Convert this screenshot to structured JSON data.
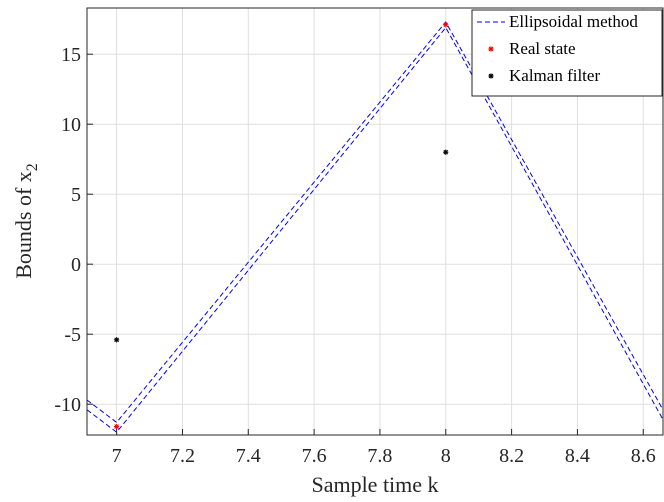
{
  "chart_data": {
    "type": "line",
    "xlabel": "Sample time k",
    "ylabel_main": "Bounds of x",
    "ylabel_sub": "2",
    "xlim": [
      6.91,
      8.66
    ],
    "ylim": [
      -12.2,
      18.3
    ],
    "xticks": [
      7,
      7.2,
      7.4,
      7.6,
      7.8,
      8,
      8.2,
      8.4,
      8.6
    ],
    "yticks": [
      -10,
      -5,
      0,
      5,
      10,
      15
    ],
    "grid": true,
    "legend_position": "top-right",
    "series": [
      {
        "name": "Ellipsoidal method",
        "style": "dashed-line",
        "color": "#0000ff",
        "bounds": [
          {
            "x": [
              6.91,
              7,
              8,
              8.66
            ],
            "y": [
              -9.7,
              -11.3,
              17.3,
              -10.4
            ]
          },
          {
            "x": [
              6.91,
              7,
              8,
              8.66
            ],
            "y": [
              -10.4,
              -12.0,
              16.9,
              -11.1
            ]
          }
        ]
      },
      {
        "name": "Real state",
        "style": "marker",
        "color": "#ff0000",
        "x": [
          7,
          8
        ],
        "y": [
          -11.6,
          17.1
        ]
      },
      {
        "name": "Kalman filter",
        "style": "marker",
        "color": "#000000",
        "x": [
          7,
          8
        ],
        "y": [
          -5.4,
          8.0
        ]
      }
    ]
  }
}
